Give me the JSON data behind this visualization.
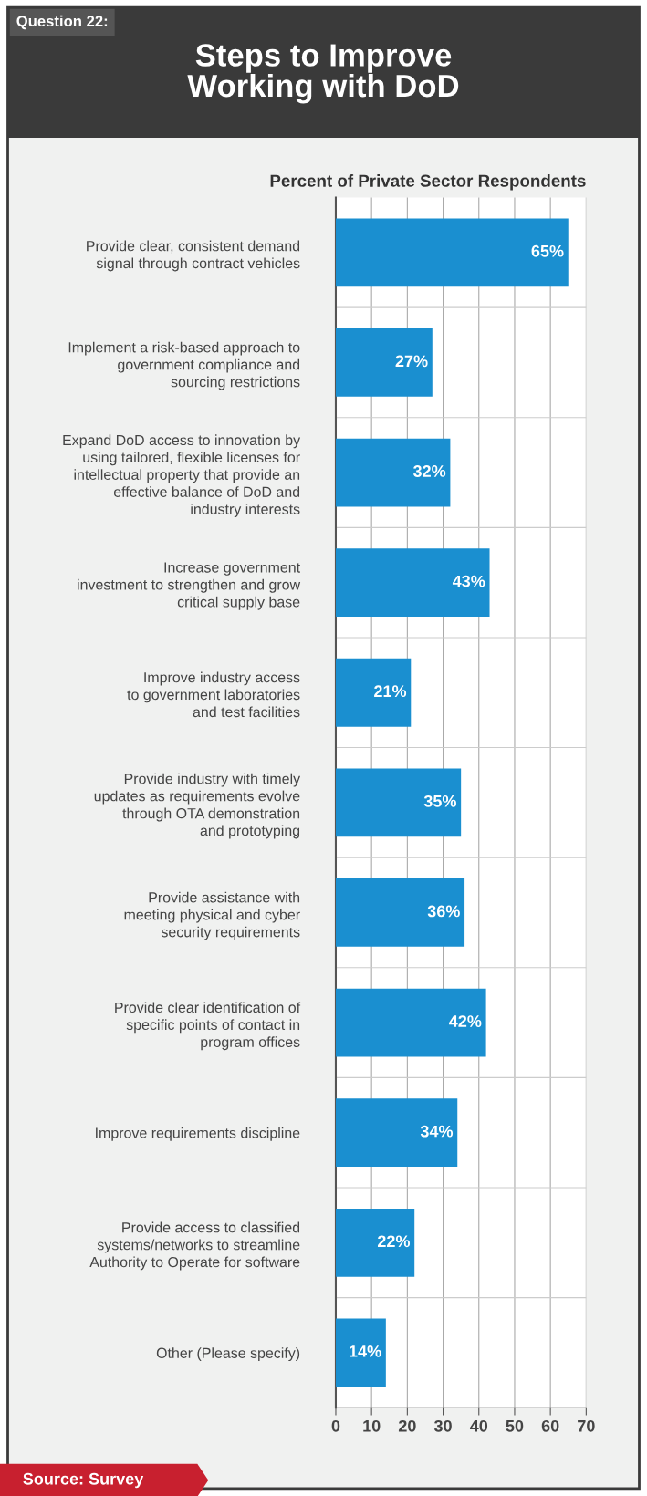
{
  "chart_data": {
    "type": "bar",
    "orientation": "horizontal",
    "title": "Steps to Improve\nWorking with DoD",
    "subtitle": "Percent of Private Sector Respondents",
    "annotations": [
      "Question 22:",
      "Source: Survey"
    ],
    "categories": [
      "Provide clear, consistent demand\nsignal through contract vehicles",
      "Implement a risk-based approach to\ngovernment compliance and\nsourcing restrictions",
      "Expand DoD access to innovation by\nusing tailored, flexible licenses for\nintellectual property that provide an\neffective balance of DoD and\nindustry interests",
      "Increase government\ninvestment to strengthen and grow\ncritical supply base",
      "Improve industry access\nto government laboratories\nand test facilities",
      "Provide industry with timely\nupdates as requirements evolve\nthrough OTA demonstration\nand prototyping",
      "Provide assistance with\nmeeting physical and cyber\nsecurity requirements",
      "Provide clear identification of\nspecific points of contact in\nprogram offices",
      "Improve requirements discipline",
      "Provide access to classified\nsystems/networks to streamline\nAuthority to Operate for software",
      "Other (Please specify)"
    ],
    "values": [
      65,
      27,
      32,
      43,
      21,
      35,
      36,
      42,
      34,
      22,
      14
    ],
    "value_labels": [
      "65%",
      "27%",
      "32%",
      "43%",
      "21%",
      "35%",
      "36%",
      "42%",
      "34%",
      "22%",
      "14%"
    ],
    "color": "#1a8fd0",
    "xlim": [
      0,
      70
    ],
    "xticks": [
      0,
      10,
      20,
      30,
      40,
      50,
      60,
      70
    ],
    "grid": true
  }
}
